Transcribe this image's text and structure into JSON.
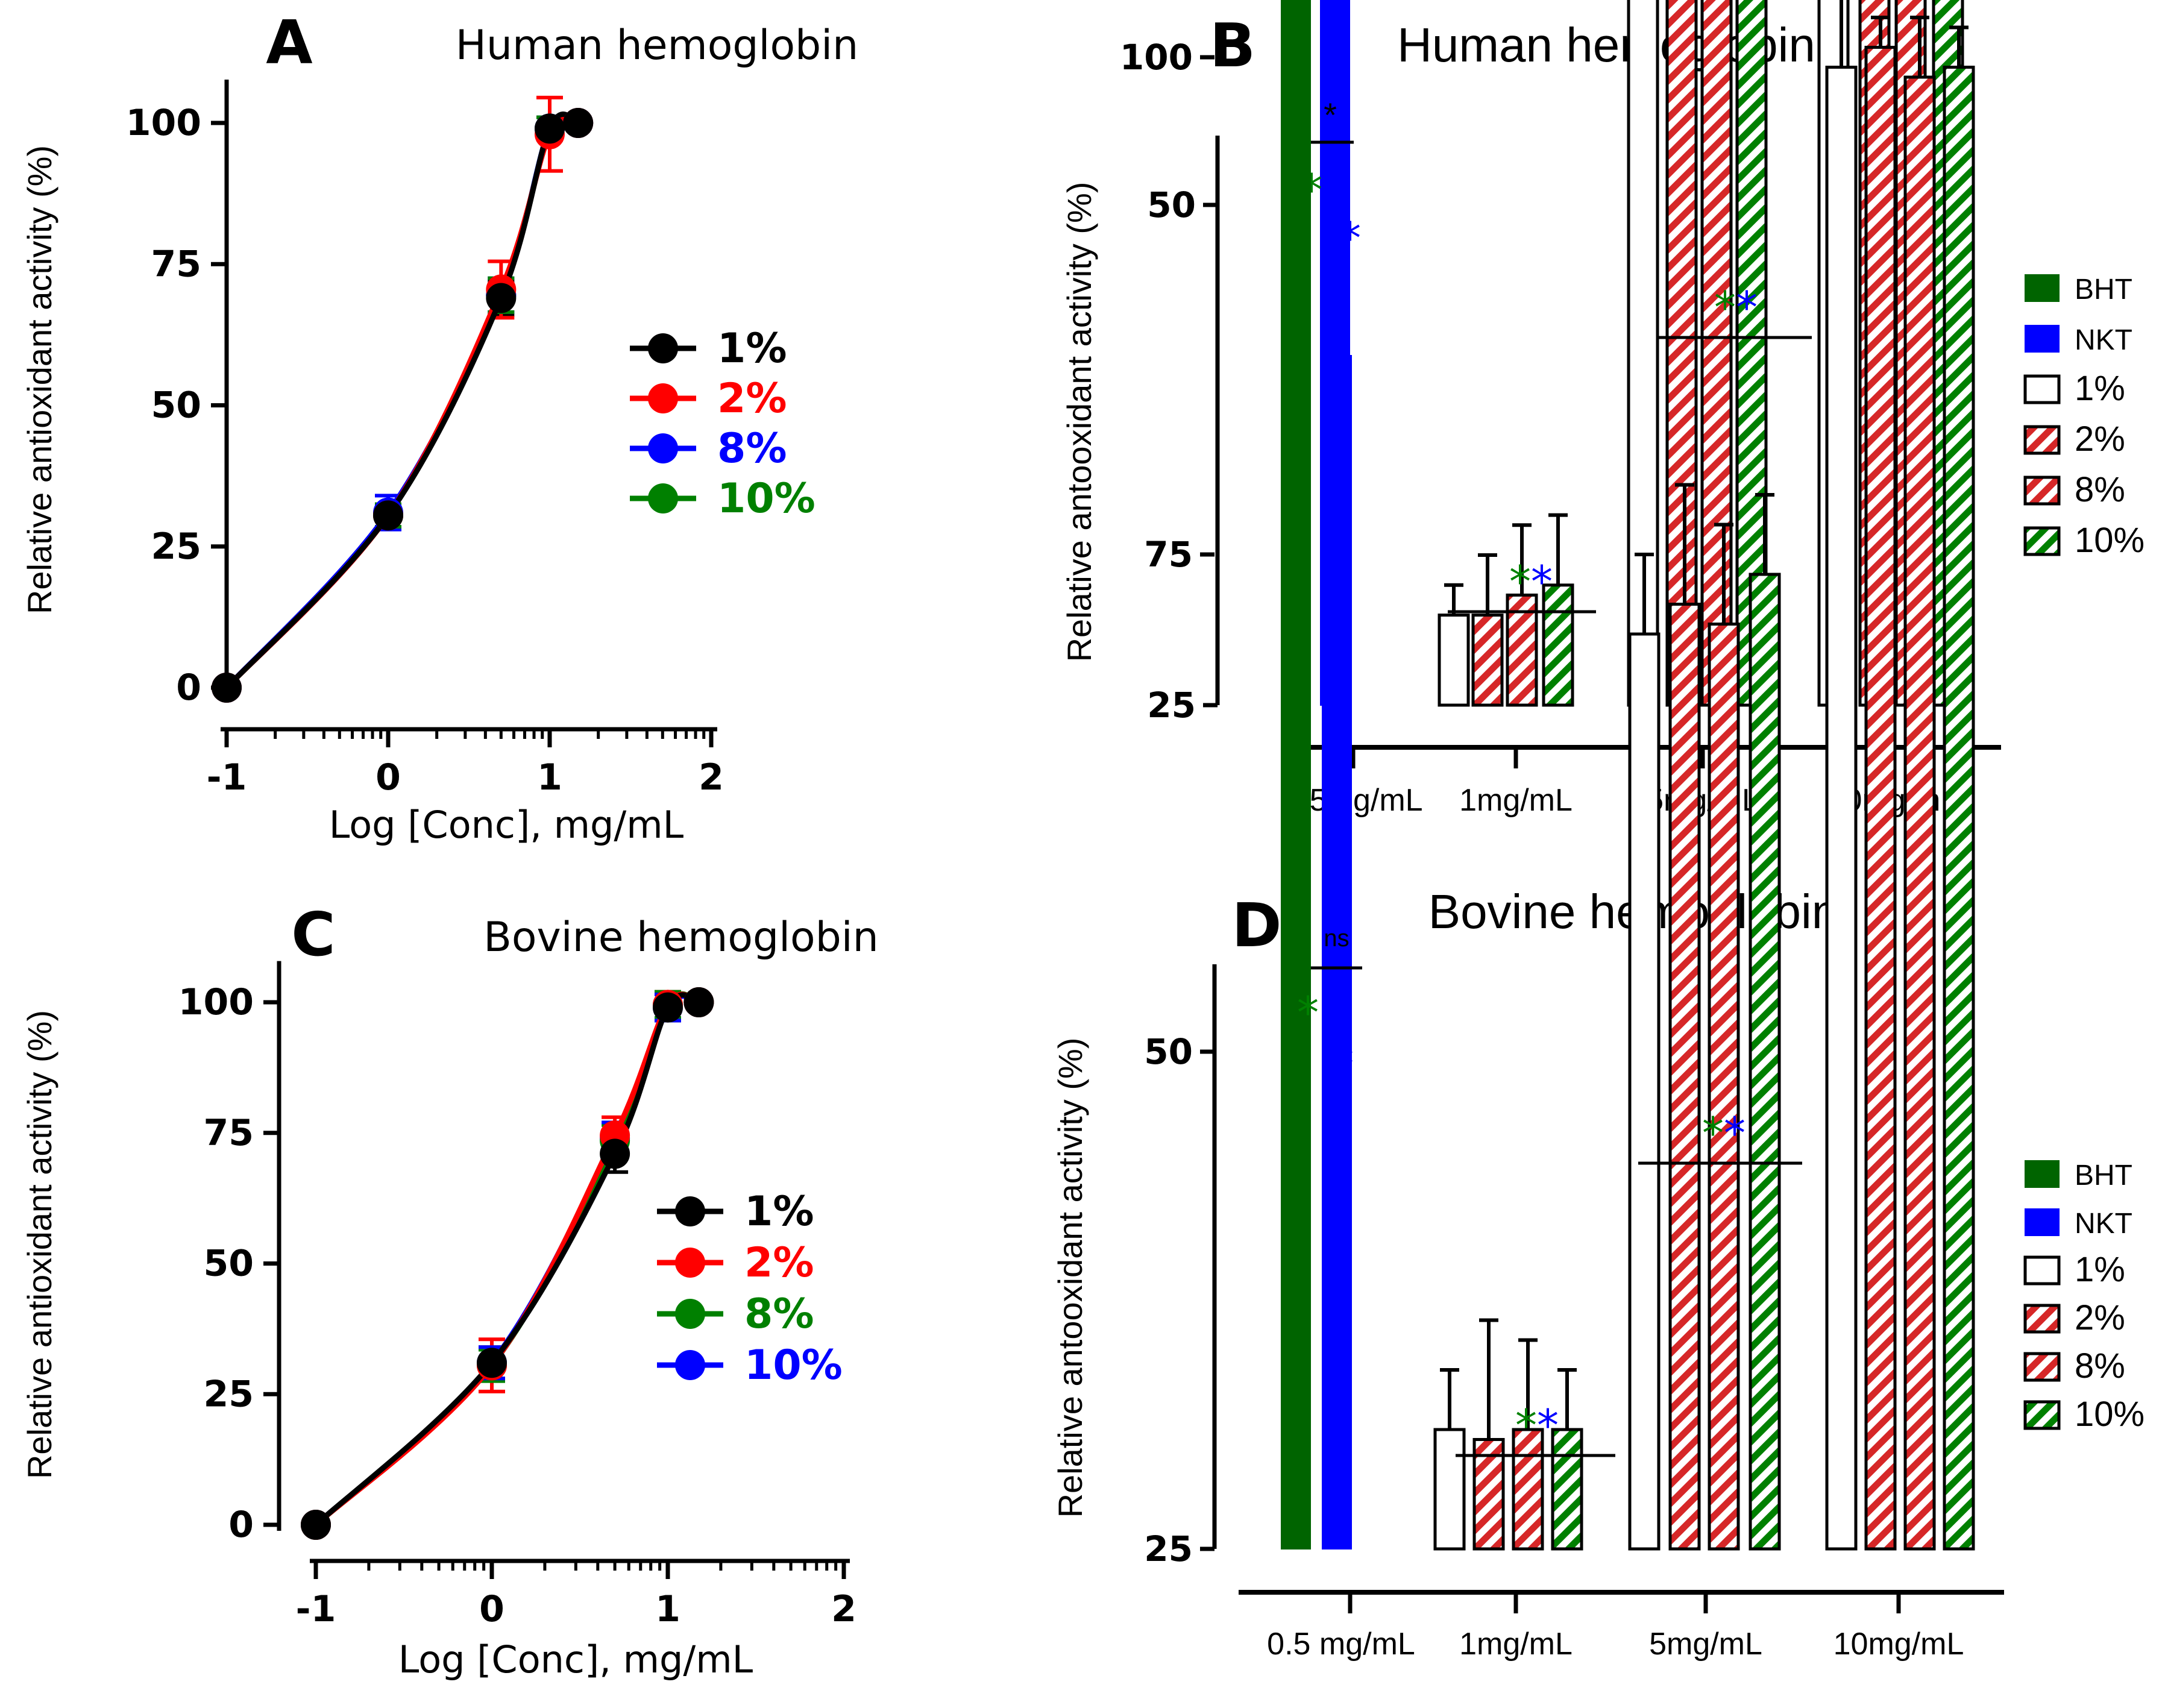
{
  "chart_data": [
    {
      "panel": "A",
      "type": "line",
      "title": "Human hemoglobin",
      "xlabel": "Log [Conc], mg/mL",
      "ylabel": "Relative antioxidant activity (%)",
      "xlim": [
        -1,
        2
      ],
      "ylim": [
        0,
        105
      ],
      "xticks": [
        "-1",
        "0",
        "1",
        "2"
      ],
      "yticks": [
        "0",
        "25",
        "50",
        "75",
        "100"
      ],
      "x": [
        -1,
        0,
        0.699,
        1,
        1.176
      ],
      "series": [
        {
          "name": "1%",
          "color": "#000000",
          "values": [
            0,
            30.5,
            69,
            99,
            100
          ],
          "errors": [
            0,
            2,
            3,
            2,
            1
          ]
        },
        {
          "name": "2%",
          "color": "#ff0000",
          "values": [
            0,
            30.5,
            70.5,
            98,
            100
          ],
          "errors": [
            0,
            2,
            5,
            6.5,
            1
          ]
        },
        {
          "name": "8%",
          "color": "#0000ff",
          "values": [
            0,
            31,
            69.5,
            99,
            100
          ],
          "errors": [
            0,
            3,
            3,
            2,
            1
          ]
        },
        {
          "name": "10%",
          "color": "#008000",
          "values": [
            0,
            30.5,
            69.5,
            99,
            100
          ],
          "errors": [
            0,
            2,
            3,
            2,
            1
          ]
        }
      ],
      "legend": "center-right"
    },
    {
      "panel": "B",
      "type": "bar",
      "title": "Human hemoglobin",
      "ylabel": "Relative antooxidant activity (%)",
      "ylim": [
        25,
        110
      ],
      "yticks": [
        "25",
        "50",
        "75",
        "100"
      ],
      "categories": [
        "0.5mg/mL",
        "1mg/mL",
        "5mg/mL",
        "10mg/mL"
      ],
      "series": [
        {
          "name": "BHT",
          "style": "solid",
          "color": "#006400",
          "values": [
            100,
            null,
            null,
            null
          ],
          "errors": [
            1.5,
            null,
            null,
            null
          ]
        },
        {
          "name": "NKT",
          "style": "solid",
          "color": "#0000ff",
          "values": [
            85,
            null,
            null,
            null
          ],
          "errors": [
            5.5,
            null,
            null,
            null
          ]
        },
        {
          "name": "1%",
          "style": "open",
          "color": "#000000",
          "values": [
            null,
            29.5,
            69,
            99
          ],
          "errors": [
            null,
            1.5,
            3.5,
            1
          ]
        },
        {
          "name": "2%",
          "style": "hatch",
          "color": "#d62728",
          "values": [
            null,
            29.5,
            70.5,
            98
          ],
          "errors": [
            null,
            3,
            5.5,
            6.5
          ]
        },
        {
          "name": "8%",
          "style": "hatch",
          "color": "#d62728",
          "values": [
            null,
            30.5,
            70,
            99
          ],
          "errors": [
            null,
            3.5,
            1.5,
            1.5
          ]
        },
        {
          "name": "10%",
          "style": "hatch",
          "color": "#008000",
          "values": [
            null,
            31,
            70,
            98.5
          ],
          "errors": [
            null,
            3.5,
            2.5,
            2.5
          ]
        }
      ],
      "annotations": [
        {
          "text": "*",
          "role": "bracket",
          "color": "#000000",
          "category": "0.5mg/mL"
        },
        {
          "text": "*",
          "color": "#008000",
          "category": "0.5mg/mL",
          "series": "BHT"
        },
        {
          "text": "*",
          "color": "#0000ff",
          "category": "0.5mg/mL",
          "series": "NKT"
        },
        {
          "text": "**",
          "colors": [
            "#008000",
            "#0000ff"
          ],
          "category": "1mg/mL"
        },
        {
          "text": "**",
          "colors": [
            "#008000",
            "#0000ff"
          ],
          "category": "5mg/mL"
        }
      ],
      "legend": "right"
    },
    {
      "panel": "C",
      "type": "line",
      "title": "Bovine hemoglobin",
      "xlabel": "Log [Conc], mg/mL",
      "ylabel": "Relative antioxidant activity (%)",
      "xlim": [
        -1,
        2
      ],
      "ylim": [
        0,
        105
      ],
      "xticks": [
        "-1",
        "0",
        "1",
        "2"
      ],
      "yticks": [
        "0",
        "25",
        "50",
        "75",
        "100"
      ],
      "x": [
        -1,
        0,
        0.699,
        1,
        1.176
      ],
      "series": [
        {
          "name": "1%",
          "color": "#000000",
          "values": [
            0,
            31,
            71,
            99,
            100
          ],
          "errors": [
            0,
            3,
            3.5,
            2.5,
            1
          ]
        },
        {
          "name": "2%",
          "color": "#ff0000",
          "values": [
            0,
            30.5,
            74.5,
            99.5,
            100
          ],
          "errors": [
            0,
            5,
            3.5,
            2.5,
            1
          ]
        },
        {
          "name": "8%",
          "color": "#008000",
          "values": [
            0,
            30.5,
            73.5,
            99.5,
            100
          ],
          "errors": [
            0,
            3,
            3,
            2.5,
            1
          ]
        },
        {
          "name": "10%",
          "color": "#0000ff",
          "values": [
            0,
            31,
            74,
            99,
            100
          ],
          "errors": [
            0,
            3,
            3,
            2.5,
            1
          ]
        }
      ],
      "legend": "center-right"
    },
    {
      "panel": "D",
      "type": "bar",
      "title": "Bovine hemoglobin",
      "ylabel": "Relative antooxidant activity (%)",
      "ylim": [
        25,
        110
      ],
      "yticks": [
        "25",
        "50",
        "75",
        "100"
      ],
      "categories": [
        "0.5 mg/mL",
        "1mg/mL",
        "5mg/mL",
        "10mg/mL"
      ],
      "series": [
        {
          "name": "BHT",
          "style": "solid",
          "color": "#006400",
          "values": [
            100,
            null,
            null,
            null
          ],
          "errors": [
            1.5,
            null,
            null,
            null
          ]
        },
        {
          "name": "NKT",
          "style": "solid",
          "color": "#0000ff",
          "values": [
            85,
            null,
            null,
            null
          ],
          "errors": [
            6,
            null,
            null,
            null
          ]
        },
        {
          "name": "1%",
          "style": "open",
          "color": "#000000",
          "values": [
            null,
            31,
            71,
            99.5
          ],
          "errors": [
            null,
            3,
            4,
            3.5
          ]
        },
        {
          "name": "2%",
          "style": "hatch",
          "color": "#d62728",
          "values": [
            null,
            30.5,
            72.5,
            100.5
          ],
          "errors": [
            null,
            6,
            6,
            1.5
          ]
        },
        {
          "name": "8%",
          "style": "hatch",
          "color": "#d62728",
          "values": [
            null,
            31,
            71.5,
            99
          ],
          "errors": [
            null,
            4.5,
            5,
            3
          ]
        },
        {
          "name": "10%",
          "style": "hatch",
          "color": "#008000",
          "values": [
            null,
            31,
            74,
            99.5
          ],
          "errors": [
            null,
            3,
            4,
            2
          ]
        }
      ],
      "annotations": [
        {
          "text": "ns",
          "role": "bracket",
          "color": "#000000",
          "category": "0.5 mg/mL"
        },
        {
          "text": "*",
          "color": "#008000",
          "category": "0.5 mg/mL",
          "series": "BHT"
        },
        {
          "text": "*",
          "color": "#0000ff",
          "category": "0.5 mg/mL",
          "series": "NKT"
        },
        {
          "text": "**",
          "colors": [
            "#008000",
            "#0000ff"
          ],
          "category": "1mg/mL"
        },
        {
          "text": "**",
          "colors": [
            "#008000",
            "#0000ff"
          ],
          "category": "5mg/mL"
        }
      ],
      "legend": "right"
    }
  ]
}
